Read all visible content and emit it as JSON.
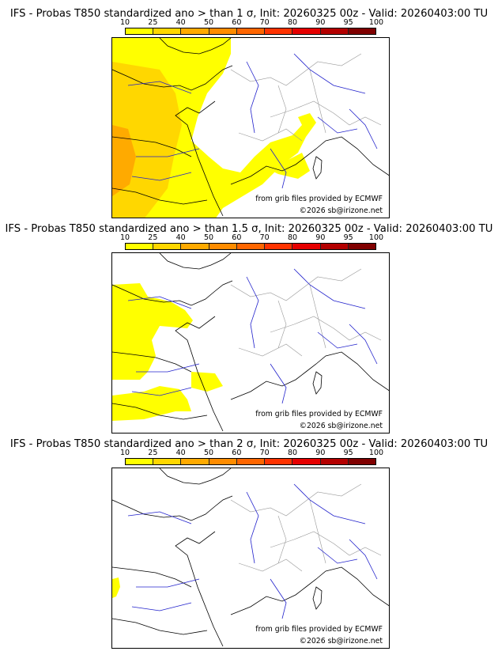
{
  "colorbar": {
    "ticks": [
      "10",
      "25",
      "40",
      "50",
      "60",
      "70",
      "80",
      "90",
      "95",
      "100"
    ],
    "colors": [
      "#ffff00",
      "#ffd700",
      "#ffaa00",
      "#ff8c00",
      "#ff6600",
      "#ff3300",
      "#e60000",
      "#b40000",
      "#800000"
    ]
  },
  "panels": [
    {
      "title": "IFS - Probas T850  standardized ano > than 1 σ, Init: 20260325 00z - Valid: 20260403:00 TU",
      "credit_line1": "from grib files provided by ECMWF",
      "credit_line2": "©2026 sb@irizone.net"
    },
    {
      "title": "IFS - Probas T850  standardized ano > than 1.5 σ, Init: 20260325 00z - Valid: 20260403:00 TU",
      "credit_line1": "from grib files provided by ECMWF",
      "credit_line2": "©2026 sb@irizone.net"
    },
    {
      "title": "IFS - Probas T850  standardized ano > than 2 σ, Init: 20260325 00z - Valid: 20260403:00 TU",
      "credit_line1": "from grib files provided by ECMWF",
      "credit_line2": "©2026 sb@irizone.net"
    }
  ],
  "map_colors": {
    "coast": "#000000",
    "rivers": "#2222cc",
    "borders": "#999999",
    "yellow": "#ffff00",
    "gold": "#ffd700",
    "orange": "#ffaa00"
  }
}
